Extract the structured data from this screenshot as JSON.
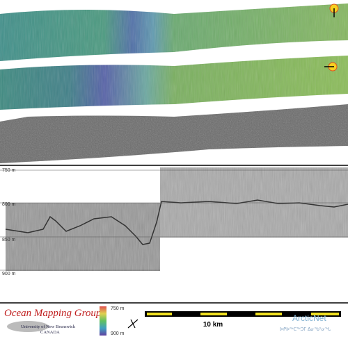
{
  "profile": {
    "depth_labels": [
      "750 m",
      "800 m",
      "850 m",
      "900 m"
    ]
  },
  "footer": {
    "group": "Ocean Mapping Group",
    "university": "University of New Brunswick",
    "country": "CANADA",
    "colorbar_labels": [
      "750 m",
      "900 m"
    ],
    "scale_label": "10 km",
    "partner": "ArcticNet",
    "partner_syllabics": "ᐅᑭᐅᖅᑕᖅᑐᒥ ᐃᓂᖃᕐᓂᖓ"
  }
}
